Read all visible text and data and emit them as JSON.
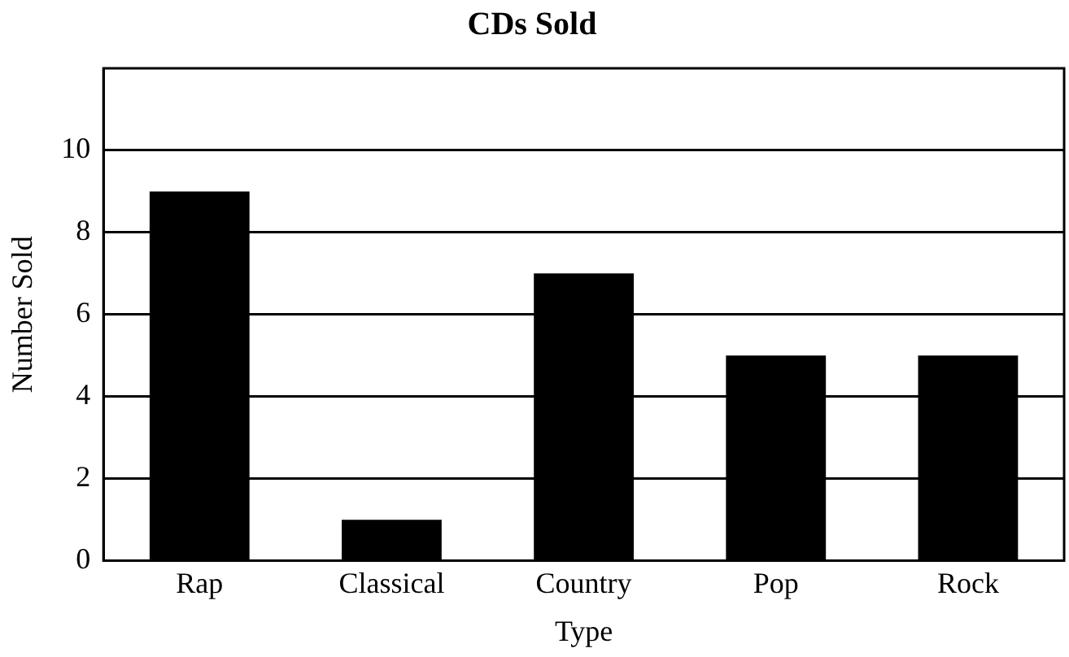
{
  "chart_data": {
    "type": "bar",
    "title": "CDs Sold",
    "xlabel": "Type",
    "ylabel": "Number Sold",
    "categories": [
      "Rap",
      "Classical",
      "Country",
      "Pop",
      "Rock"
    ],
    "values": [
      9,
      1,
      7,
      5,
      5
    ],
    "color": "#000000",
    "ylim": [
      0,
      12
    ],
    "yticks": [
      0,
      2,
      4,
      6,
      8,
      10
    ],
    "grid": "y",
    "legend": false
  }
}
